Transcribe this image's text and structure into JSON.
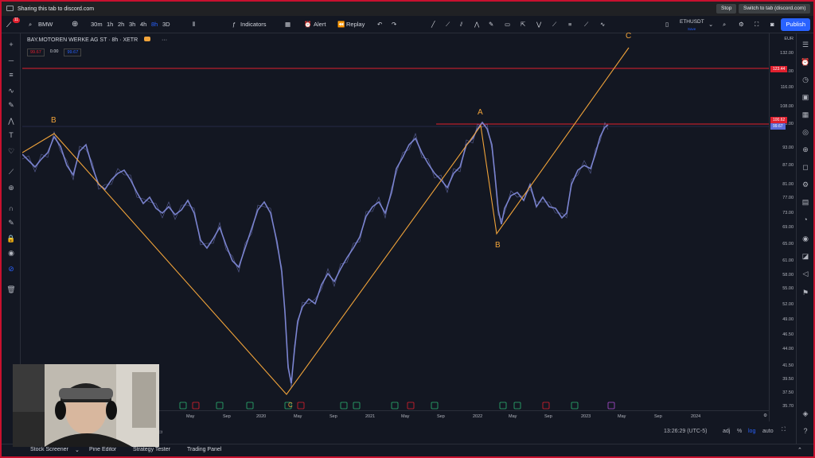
{
  "share_bar": {
    "text": "Sharing this tab to discord.com",
    "stop": "Stop",
    "switch": "Switch to tab (discord.com)"
  },
  "toolbar": {
    "symbol": "BMW",
    "intervals": [
      "30m",
      "1h",
      "2h",
      "3h",
      "4h",
      "8h",
      "3D"
    ],
    "active_interval": "8h",
    "indicators": "Indicators",
    "alert": "Alert",
    "replay": "Replay",
    "pair": "ETHUSDT",
    "pair_sub": "Save",
    "publish": "Publish"
  },
  "chart": {
    "symbol_title": "BAY.MOTOREN WERKE AG ST · 8h · XETR",
    "ohlc": [
      "99.67",
      "0.00",
      "99.67"
    ],
    "currency": "EUR",
    "price_ticks": [
      "132.00",
      "124.00",
      "116.00",
      "108.00",
      "100.00",
      "93.00",
      "87.00",
      "81.00",
      "77.00",
      "73.00",
      "69.00",
      "65.00",
      "61.00",
      "58.00",
      "55.00",
      "52.00",
      "49.00",
      "46.50",
      "44.00",
      "41.50",
      "39.50",
      "37.50",
      "35.70"
    ],
    "badges": {
      "top": "123.44",
      "mid": "100.62",
      "last": "99.67"
    },
    "time_labels": [
      "May",
      "Sep",
      "2020",
      "May",
      "Sep",
      "2021",
      "May",
      "Sep",
      "2022",
      "May",
      "Sep",
      "2023",
      "May",
      "Sep",
      "2024"
    ],
    "wave_labels": [
      "B",
      "A",
      "B",
      "C",
      "C"
    ]
  },
  "status": {
    "time": "13:26:29 (UTC-5)",
    "adj": "adj",
    "pct": "%",
    "log": "log",
    "auto": "auto"
  },
  "bottom": {
    "items": [
      "Stock Screener",
      "Pine Editor",
      "Strategy Tester",
      "Trading Panel"
    ]
  },
  "colors": {
    "accent": "#2962ff",
    "wave": "#f0a33a",
    "level": "#e0202e",
    "candles": "#8a93e8"
  }
}
